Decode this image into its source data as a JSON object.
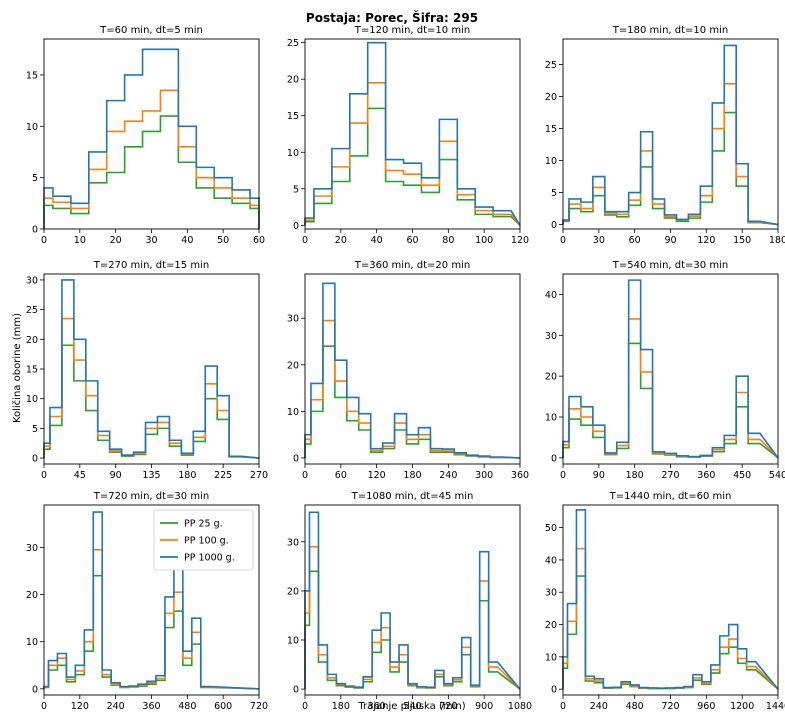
{
  "figure": {
    "title": "Postaja: Porec,  Šifra: 295",
    "ylabel": "Količina oborine (mm)",
    "xlabel": "Trajanje pljuska (min)"
  },
  "colors": {
    "pp25": "#2ca02c",
    "pp100": "#ff7f0e",
    "pp1000": "#1f77b4"
  },
  "legend": {
    "entries": [
      "PP 25 g.",
      "PP 100 g.",
      "PP 1000 g."
    ],
    "panel": 6,
    "location": "top-right"
  },
  "chart_data": [
    {
      "type": "line",
      "step": true,
      "title": "T=60 min, dt=5 min",
      "xlim": [
        0,
        60
      ],
      "ylim": [
        0,
        18.5
      ],
      "dt": 5,
      "xticks": [
        0,
        10,
        20,
        30,
        40,
        50,
        60
      ],
      "yticks": [
        0,
        5,
        10,
        15
      ],
      "series": [
        {
          "name": "PP 25 g.",
          "values": [
            2.3,
            2.0,
            1.5,
            4.5,
            5.5,
            8.0,
            9.5,
            11.0,
            6.5,
            4.0,
            3.0,
            2.5,
            2.0
          ]
        },
        {
          "name": "PP 100 g.",
          "values": [
            3.0,
            2.6,
            2.0,
            5.8,
            9.5,
            10.5,
            11.5,
            13.5,
            8.0,
            5.0,
            4.0,
            3.0,
            2.3
          ]
        },
        {
          "name": "PP 1000 g.",
          "values": [
            4.0,
            3.2,
            2.5,
            7.5,
            12.5,
            15.0,
            17.5,
            17.5,
            10.0,
            6.0,
            5.0,
            3.8,
            3.0
          ]
        }
      ]
    },
    {
      "type": "line",
      "step": true,
      "title": "T=120 min, dt=10 min",
      "xlim": [
        0,
        120
      ],
      "ylim": [
        -0.5,
        25.5
      ],
      "dt": 10,
      "xticks": [
        0,
        20,
        40,
        60,
        80,
        100,
        120
      ],
      "yticks": [
        0,
        5,
        10,
        15,
        20,
        25
      ],
      "series": [
        {
          "name": "PP 25 g.",
          "values": [
            0.5,
            3.0,
            6.0,
            9.5,
            16.0,
            6.0,
            5.5,
            4.5,
            9.0,
            3.5,
            1.5,
            1.2
          ]
        },
        {
          "name": "PP 100 g.",
          "values": [
            0.7,
            4.0,
            8.0,
            14.0,
            19.5,
            7.5,
            7.0,
            5.5,
            11.5,
            4.2,
            2.0,
            1.5
          ]
        },
        {
          "name": "PP 1000 g.",
          "values": [
            1.0,
            5.0,
            10.5,
            18.0,
            25.0,
            9.0,
            8.5,
            6.5,
            14.5,
            5.0,
            2.5,
            2.0
          ]
        }
      ]
    },
    {
      "type": "line",
      "step": true,
      "title": "T=180 min, dt=10 min",
      "xlim": [
        0,
        180
      ],
      "ylim": [
        -0.7,
        29
      ],
      "dt": 10,
      "xticks": [
        0,
        30,
        60,
        90,
        120,
        150,
        180
      ],
      "yticks": [
        0,
        5,
        10,
        15,
        20,
        25
      ],
      "series": [
        {
          "name": "PP 25 g.",
          "values": [
            0.5,
            2.5,
            2.0,
            4.5,
            1.5,
            1.2,
            3.0,
            9.0,
            2.5,
            1.0,
            0.5,
            1.0,
            3.5,
            11.5,
            17.5,
            6.0,
            0.3
          ]
        },
        {
          "name": "PP 100 g.",
          "values": [
            0.6,
            3.2,
            2.5,
            5.8,
            1.8,
            1.6,
            3.8,
            11.5,
            3.2,
            1.2,
            0.7,
            1.3,
            4.5,
            15.0,
            22.0,
            7.5,
            0.4
          ]
        },
        {
          "name": "PP 1000 g.",
          "values": [
            0.7,
            4.0,
            3.5,
            7.5,
            2.0,
            2.0,
            5.0,
            14.5,
            4.0,
            1.5,
            0.8,
            1.6,
            6.0,
            19.0,
            28.0,
            9.5,
            0.5
          ]
        }
      ]
    },
    {
      "type": "line",
      "step": true,
      "title": "T=270 min, dt=15 min",
      "xlim": [
        0,
        270
      ],
      "ylim": [
        -1,
        31
      ],
      "dt": 15,
      "xticks": [
        0,
        45,
        90,
        135,
        180,
        225,
        270
      ],
      "yticks": [
        0,
        5,
        10,
        15,
        20,
        25,
        30
      ],
      "series": [
        {
          "name": "PP 25 g.",
          "values": [
            1.5,
            5.5,
            19.0,
            13.0,
            8.0,
            3.0,
            1.0,
            0.3,
            0.6,
            4.0,
            5.0,
            2.0,
            0.5,
            2.8,
            10.0,
            6.5,
            0.2
          ]
        },
        {
          "name": "PP 100 g.",
          "values": [
            2.0,
            7.0,
            23.5,
            16.5,
            10.5,
            3.8,
            1.2,
            0.4,
            0.8,
            5.0,
            6.0,
            2.5,
            0.7,
            3.5,
            12.5,
            8.0,
            0.3
          ]
        },
        {
          "name": "PP 1000 g.",
          "values": [
            2.5,
            8.5,
            30.0,
            20.0,
            13.0,
            4.5,
            1.5,
            0.5,
            1.0,
            6.0,
            7.0,
            3.0,
            0.8,
            4.5,
            15.5,
            10.5,
            0.3
          ]
        }
      ]
    },
    {
      "type": "line",
      "step": true,
      "title": "T=360 min, dt=20 min",
      "xlim": [
        0,
        360
      ],
      "ylim": [
        -1.3,
        39.5
      ],
      "dt": 20,
      "xticks": [
        0,
        60,
        120,
        180,
        240,
        300,
        360
      ],
      "yticks": [
        0,
        10,
        20,
        30
      ],
      "series": [
        {
          "name": "PP 25 g.",
          "values": [
            3.0,
            10.0,
            24.0,
            13.0,
            8.0,
            6.0,
            1.2,
            2.0,
            6.0,
            3.0,
            4.0,
            1.2,
            1.2,
            0.7,
            0.4,
            0.2,
            0.1
          ]
        },
        {
          "name": "PP 100 g.",
          "values": [
            4.0,
            12.5,
            29.5,
            16.5,
            10.0,
            7.5,
            1.6,
            2.5,
            7.5,
            4.0,
            5.0,
            1.6,
            1.5,
            0.9,
            0.5,
            0.3,
            0.1
          ]
        },
        {
          "name": "PP 1000 g.",
          "values": [
            5.0,
            16.0,
            37.5,
            21.0,
            13.0,
            9.5,
            2.0,
            3.2,
            9.5,
            5.0,
            6.5,
            2.0,
            1.9,
            1.1,
            0.6,
            0.4,
            0.2
          ]
        }
      ]
    },
    {
      "type": "line",
      "step": true,
      "title": "T=540 min, dt=30 min",
      "xlim": [
        0,
        540
      ],
      "ylim": [
        -1.5,
        45
      ],
      "dt": 30,
      "xticks": [
        0,
        90,
        180,
        270,
        360,
        450,
        540
      ],
      "yticks": [
        0,
        10,
        20,
        30,
        40
      ],
      "series": [
        {
          "name": "PP 25 g.",
          "values": [
            2.5,
            9.5,
            8.0,
            5.0,
            0.8,
            2.3,
            28.0,
            17.0,
            1.0,
            0.7,
            0.3,
            0.2,
            0.4,
            1.5,
            3.5,
            12.5,
            3.5
          ]
        },
        {
          "name": "PP 100 g.",
          "values": [
            3.2,
            12.0,
            10.0,
            6.5,
            1.0,
            3.0,
            34.0,
            21.0,
            1.2,
            0.9,
            0.4,
            0.3,
            0.5,
            2.0,
            4.5,
            16.0,
            4.5
          ]
        },
        {
          "name": "PP 1000 g.",
          "values": [
            4.0,
            15.0,
            12.5,
            8.0,
            1.2,
            3.8,
            43.5,
            26.5,
            1.5,
            1.1,
            0.5,
            0.3,
            0.6,
            2.5,
            5.5,
            20.0,
            6.0
          ]
        }
      ]
    },
    {
      "type": "line",
      "step": true,
      "title": "T=720 min, dt=30 min",
      "xlim": [
        0,
        720
      ],
      "ylim": [
        -1.3,
        39
      ],
      "dt": 30,
      "xticks": [
        0,
        120,
        240,
        360,
        480,
        600,
        720
      ],
      "yticks": [
        0,
        10,
        20,
        30
      ],
      "series": [
        {
          "name": "PP 25 g.",
          "values": [
            0.3,
            4.0,
            5.0,
            1.5,
            3.0,
            8.0,
            24.0,
            2.5,
            0.8,
            0.3,
            0.4,
            0.6,
            1.0,
            1.8,
            13.0,
            16.5,
            5.0,
            9.5,
            0.3
          ]
        },
        {
          "name": "PP 100 g.",
          "values": [
            0.4,
            5.0,
            6.5,
            2.0,
            3.8,
            10.0,
            29.5,
            3.0,
            1.0,
            0.4,
            0.5,
            0.8,
            1.3,
            2.2,
            16.0,
            20.5,
            6.5,
            12.0,
            0.4
          ]
        },
        {
          "name": "PP 1000 g.",
          "values": [
            0.5,
            6.0,
            7.5,
            2.5,
            5.0,
            12.5,
            37.5,
            4.0,
            1.3,
            0.5,
            0.6,
            1.0,
            1.6,
            2.8,
            19.5,
            25.5,
            8.0,
            15.0,
            0.5
          ]
        }
      ]
    },
    {
      "type": "line",
      "step": true,
      "title": "T=1080 min, dt=45 min",
      "xlim": [
        0,
        1080
      ],
      "ylim": [
        -1.2,
        37.5
      ],
      "dt": 45,
      "xticks": [
        0,
        180,
        360,
        540,
        720,
        900,
        1080
      ],
      "yticks": [
        0,
        10,
        20,
        30
      ],
      "series": [
        {
          "name": "PP 25 g.",
          "values": [
            13.0,
            24.0,
            5.5,
            1.8,
            0.7,
            0.4,
            0.2,
            1.5,
            7.5,
            10.0,
            3.5,
            5.5,
            0.7,
            0.3,
            0.2,
            2.5,
            0.7,
            1.5,
            7.0,
            0.5,
            18.0,
            3.5
          ]
        },
        {
          "name": "PP 100 g.",
          "values": [
            15.5,
            29.0,
            7.0,
            2.3,
            0.9,
            0.5,
            0.3,
            2.0,
            9.5,
            12.5,
            4.5,
            7.0,
            0.9,
            0.4,
            0.3,
            3.0,
            0.9,
            1.9,
            8.5,
            0.7,
            22.0,
            4.5
          ]
        },
        {
          "name": "PP 1000 g.",
          "values": [
            20.0,
            36.0,
            9.0,
            3.0,
            1.1,
            0.6,
            0.4,
            2.5,
            12.0,
            15.5,
            5.5,
            9.0,
            1.1,
            0.5,
            0.4,
            3.8,
            1.1,
            2.3,
            10.5,
            0.8,
            28.0,
            5.5
          ]
        }
      ]
    },
    {
      "type": "line",
      "step": true,
      "title": "T=1440 min, dt=60 min",
      "xlim": [
        0,
        1440
      ],
      "ylim": [
        -1.8,
        57
      ],
      "dt": 60,
      "xticks": [
        0,
        240,
        480,
        720,
        960,
        1200,
        1440
      ],
      "yticks": [
        0,
        10,
        20,
        30,
        40,
        50
      ],
      "series": [
        {
          "name": "PP 25 g.",
          "values": [
            6.5,
            17.0,
            35.0,
            2.5,
            2.0,
            0.3,
            0.4,
            1.5,
            0.8,
            0.3,
            0.2,
            0.2,
            0.2,
            0.3,
            0.5,
            2.8,
            1.5,
            5.0,
            11.0,
            13.0,
            8.0,
            6.0
          ]
        },
        {
          "name": "PP 100 g.",
          "values": [
            8.0,
            21.0,
            43.5,
            3.2,
            2.5,
            0.4,
            0.5,
            1.8,
            1.0,
            0.4,
            0.3,
            0.3,
            0.3,
            0.4,
            0.6,
            3.5,
            1.8,
            6.0,
            13.0,
            15.5,
            9.5,
            7.0
          ]
        },
        {
          "name": "PP 1000 g.",
          "values": [
            10.0,
            26.5,
            55.5,
            4.0,
            3.2,
            0.5,
            0.6,
            2.3,
            1.3,
            0.5,
            0.4,
            0.3,
            0.4,
            0.5,
            0.8,
            4.5,
            2.3,
            7.5,
            16.5,
            20.0,
            12.5,
            8.5
          ]
        }
      ]
    }
  ]
}
